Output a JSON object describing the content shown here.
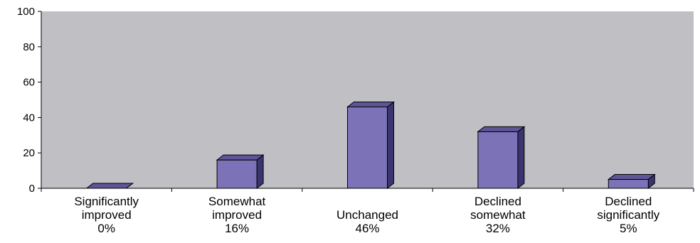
{
  "chart_data": {
    "type": "bar",
    "style": "3d-column",
    "categories": [
      [
        "Significantly",
        "improved",
        "0%"
      ],
      [
        "Somewhat",
        "improved",
        "16%"
      ],
      [
        "",
        "Unchanged",
        "46%"
      ],
      [
        "Declined",
        "somewhat",
        "32%"
      ],
      [
        "Declined",
        "significantly",
        "5%"
      ]
    ],
    "values": [
      0,
      16,
      46,
      32,
      5
    ],
    "ylim": [
      0,
      100
    ],
    "yticks": [
      "0",
      "20",
      "40",
      "60",
      "80",
      "100"
    ],
    "title": "",
    "xlabel": "",
    "ylabel": "",
    "grid": false,
    "legend": "none",
    "colors": {
      "plot_background": "#c0bfc4",
      "bar_front": "#7b72b8",
      "bar_top": "#5d5598",
      "bar_side": "#3a3470",
      "bar_outline": "#000000"
    }
  }
}
